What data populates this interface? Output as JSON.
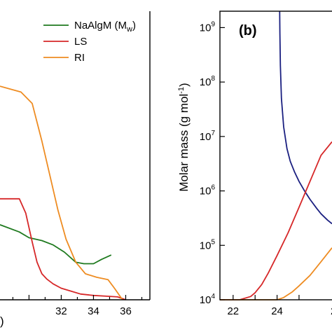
{
  "chart_data": [
    {
      "panel": "a",
      "type": "line",
      "xlim": [
        28.2,
        37.5
      ],
      "ylim": [
        0,
        1
      ],
      "x_ticks": [
        32,
        34,
        36
      ],
      "xlabel_fragment": ")",
      "legend": {
        "placement": "top-right",
        "entries": [
          {
            "label": "NaAlgM (M",
            "sub": "w",
            "suffix": ")",
            "color": "#1f7a1f"
          },
          {
            "label": "LS",
            "color": "#d62728"
          },
          {
            "label": "RI",
            "color": "#ee8c22"
          }
        ]
      },
      "series": [
        {
          "name": "NaAlgM (Mw)",
          "color": "#1f7a1f",
          "x": [
            28.2,
            29.4,
            30.0,
            30.8,
            31.5,
            32.2,
            32.9,
            33.4,
            34.0,
            34.5,
            35.1
          ],
          "y": [
            0.26,
            0.235,
            0.215,
            0.205,
            0.19,
            0.165,
            0.13,
            0.125,
            0.125,
            0.14,
            0.155
          ]
        },
        {
          "name": "LS",
          "color": "#d62728",
          "x": [
            28.2,
            29.4,
            29.8,
            30.2,
            30.5,
            30.8,
            31.1,
            31.5,
            32.0,
            32.6,
            33.2,
            34.0,
            35.0,
            35.5,
            36.0
          ],
          "y": [
            0.35,
            0.35,
            0.3,
            0.2,
            0.13,
            0.09,
            0.072,
            0.055,
            0.04,
            0.03,
            0.02,
            0.015,
            0.012,
            0.01,
            0.0
          ]
        },
        {
          "name": "RI",
          "color": "#ee8c22",
          "x": [
            28.2,
            29.5,
            30.2,
            30.8,
            31.3,
            31.8,
            32.3,
            32.9,
            33.5,
            34.2,
            34.9,
            35.3,
            35.8
          ],
          "y": [
            0.74,
            0.72,
            0.68,
            0.55,
            0.43,
            0.31,
            0.21,
            0.13,
            0.09,
            0.078,
            0.07,
            0.04,
            0.0
          ]
        }
      ]
    },
    {
      "panel": "b",
      "panel_tag": "(b)",
      "type": "line",
      "ylabel": "Molar mass (g mol",
      "ylabel_sup": "-1",
      "ylabel_end": ")",
      "y_scale": "log",
      "xlim": [
        21.4,
        26.5
      ],
      "ylim": [
        10000,
        2000000000
      ],
      "x_ticks": [
        22,
        23,
        24,
        25
      ],
      "x_tick_labels": [
        "22",
        "",
        "24",
        ""
      ],
      "x_clipped_label": "2",
      "y_ticks": [
        {
          "value": 10000,
          "base": "10",
          "exp": "4"
        },
        {
          "value": 100000,
          "base": "10",
          "exp": "5"
        },
        {
          "value": 1000000,
          "base": "10",
          "exp": "6"
        },
        {
          "value": 10000000,
          "base": "10",
          "exp": "7"
        },
        {
          "value": 100000000,
          "base": "10",
          "exp": "8"
        },
        {
          "value": 1000000000,
          "base": "10",
          "exp": "9"
        }
      ],
      "series": [
        {
          "color": "#1a1f80",
          "x": [
            24.12,
            24.13,
            24.15,
            24.2,
            24.3,
            24.45,
            24.6,
            24.8,
            25.0,
            25.25,
            25.5,
            25.8,
            26.0,
            26.3,
            26.5
          ],
          "y": [
            2000000000,
            800000000,
            200000000,
            50000000,
            15000000,
            6000000,
            3500000,
            2200000,
            1500000,
            1000000,
            700000,
            480000,
            380000,
            290000,
            250000
          ]
        },
        {
          "color": "#d62728",
          "x": [
            21.4,
            22.3,
            22.8,
            23.0,
            23.3,
            23.6,
            24.0,
            24.5,
            25.0,
            25.5,
            26.0,
            26.5
          ],
          "y": [
            10000,
            10000,
            11500,
            13500,
            19000,
            31000,
            65000,
            170000,
            500000,
            1500000,
            4500000,
            8000000
          ]
        },
        {
          "color": "#ee8c22",
          "x": [
            21.4,
            23.6,
            24.0,
            24.3,
            24.7,
            25.0,
            25.5,
            26.0,
            26.5
          ],
          "y": [
            10000,
            10000,
            10000,
            11000,
            14000,
            18000,
            28000,
            50000,
            90000
          ]
        }
      ]
    }
  ]
}
